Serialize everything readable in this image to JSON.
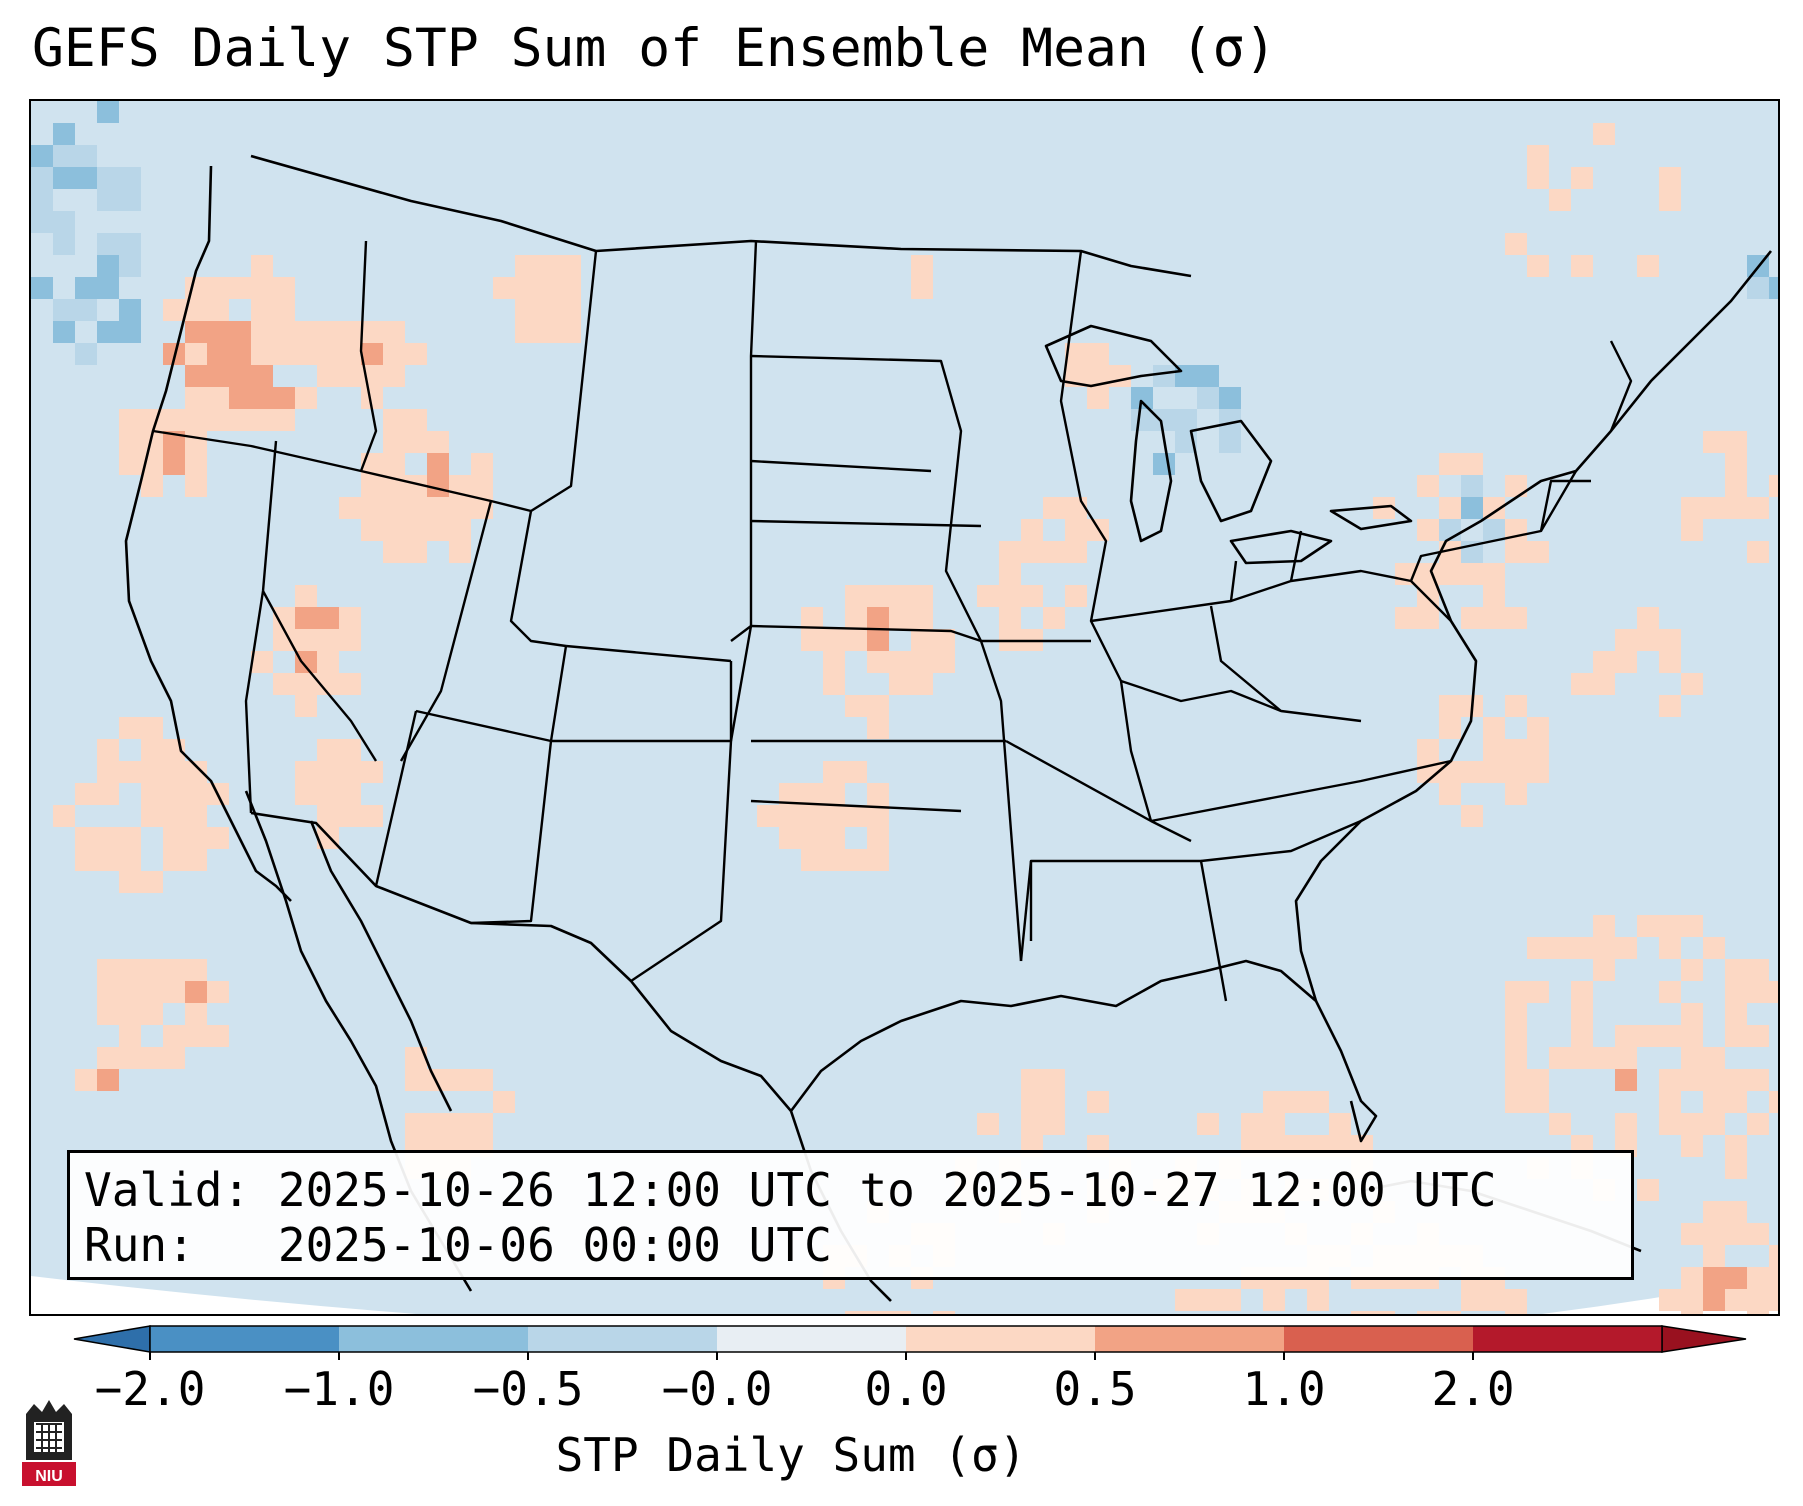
{
  "figure": {
    "title": "GEFS Daily STP Sum of Ensemble Mean (σ)",
    "valid_label": "Valid:",
    "valid_value": "2025-10-26 12:00 UTC to 2025-10-27 12:00 UTC",
    "run_label": "Run:",
    "run_value": "2025-10-06 00:00 UTC"
  },
  "colorbar": {
    "label": "STP Daily Sum (σ)",
    "ticks": [
      "−2.0",
      "−1.0",
      "−0.5",
      "−0.0",
      "0.0",
      "0.5",
      "1.0",
      "2.0"
    ],
    "colors": [
      "#4a90c4",
      "#8cbfdc",
      "#b9d6e8",
      "#e8eef3",
      "#fcd8c4",
      "#f2a385",
      "#d9604f",
      "#b4192b"
    ],
    "extend_low_color": "#2e6faa",
    "extend_high_color": "#99111f",
    "background_color": "#d0e3ef"
  },
  "logo": {
    "text": "NIU",
    "color": "#c8102e"
  }
}
